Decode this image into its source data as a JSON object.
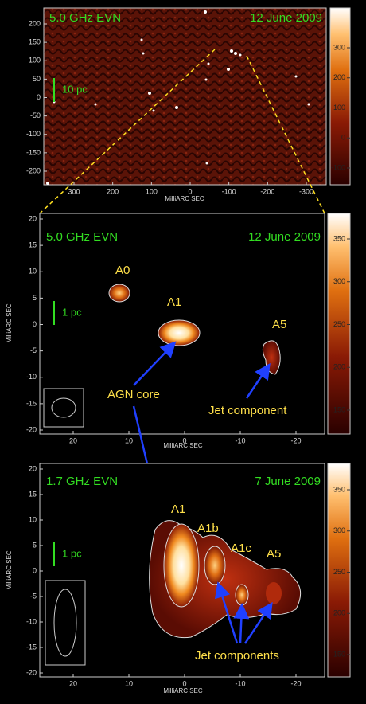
{
  "panels": [
    {
      "band": "5.0 GHz EVN",
      "date": "12 June 2009",
      "scale": "10 pc",
      "x_label": "MilliARC SEC",
      "x_ticks": [
        300,
        200,
        100,
        0,
        -100,
        -200,
        -300
      ],
      "y_ticks": [
        200,
        150,
        100,
        50,
        0,
        -50,
        -100,
        -150,
        -200
      ],
      "colorbar_ticks": [
        300,
        200,
        100,
        0,
        -100
      ]
    },
    {
      "band": "5.0 GHz EVN",
      "date": "12 June 2009",
      "scale": "1 pc",
      "x_label": "MilliARC SEC",
      "y_label": "MilliARC SEC",
      "x_ticks": [
        20,
        10,
        0,
        -10,
        -20
      ],
      "y_ticks": [
        20,
        15,
        10,
        5,
        0,
        -5,
        -10,
        -15,
        -20
      ],
      "colorbar_ticks": [
        350,
        300,
        250,
        200,
        150
      ],
      "annotations": [
        "A0",
        "A1",
        "A5",
        "AGN core",
        "Jet component"
      ]
    },
    {
      "band": "1.7 GHz EVN",
      "date": "7 June 2009",
      "scale": "1 pc",
      "x_label": "MilliARC SEC",
      "y_label": "MilliARC SEC",
      "x_ticks": [
        20,
        10,
        0,
        -10,
        -20
      ],
      "y_ticks": [
        20,
        15,
        10,
        5,
        0,
        -5,
        -10,
        -15,
        -20
      ],
      "colorbar_ticks": [
        350,
        300,
        250,
        200,
        150
      ],
      "annotations": [
        "A1",
        "A1b",
        "A1c",
        "A5",
        "Jet components"
      ]
    }
  ]
}
